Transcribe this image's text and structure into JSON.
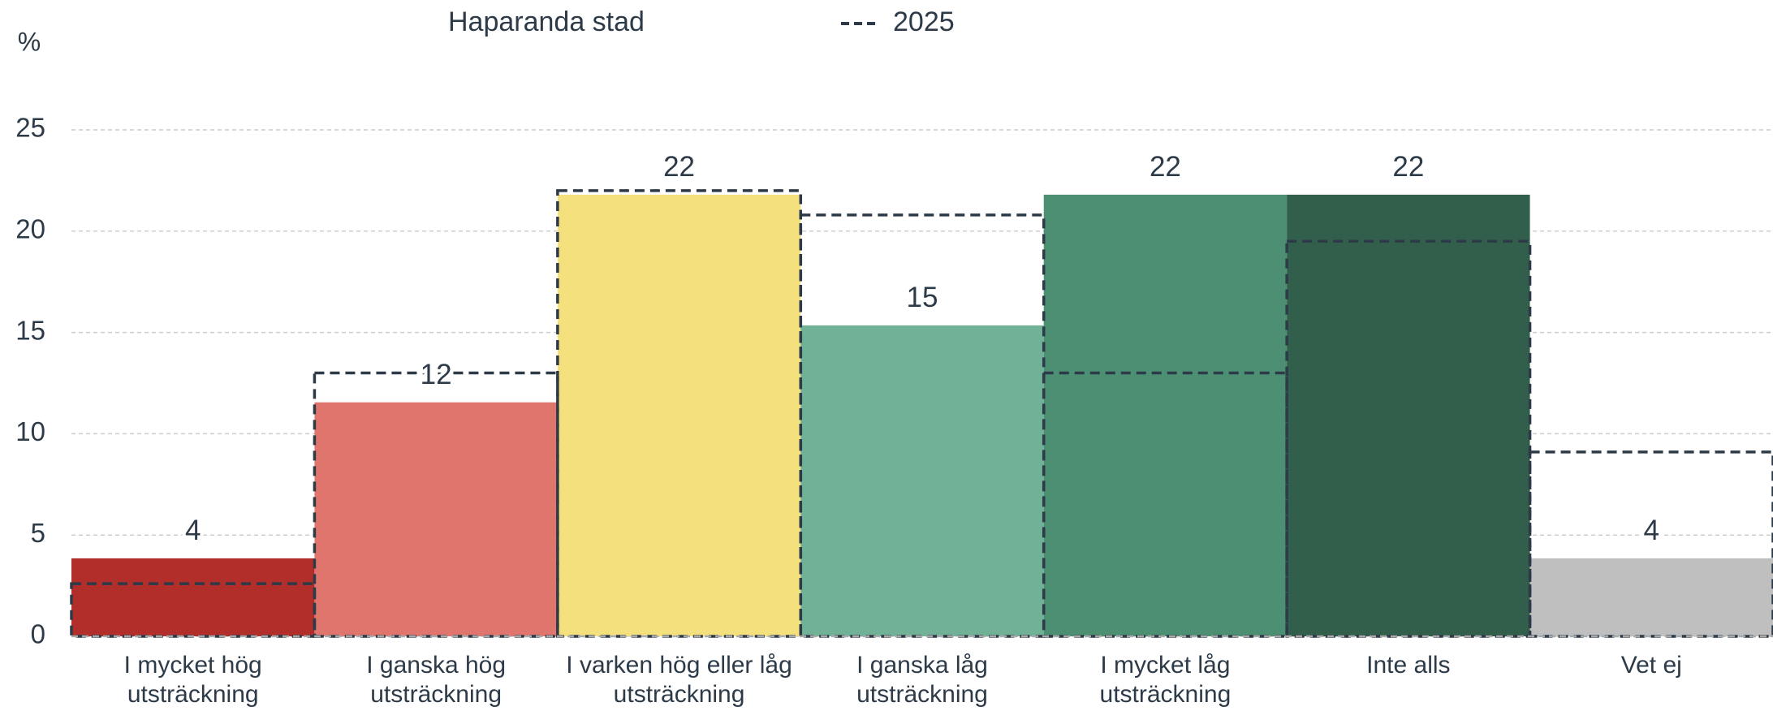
{
  "chart_data": {
    "type": "bar",
    "y_label": "%",
    "categories": [
      "I mycket hög utsträckning",
      "I ganska hög utsträckning",
      "I varken hög eller låg utsträckning",
      "I ganska låg utsträckning",
      "I mycket låg utsträckning",
      "Inte alls",
      "Vet ej"
    ],
    "series": [
      {
        "name": "Haparanda stad",
        "colors": [
          "#b22e2a",
          "#e0756d",
          "#f5e07e",
          "#70b197",
          "#4c8f72",
          "#325f4b",
          "#bfbfbf"
        ],
        "values": [
          3.85,
          11.55,
          21.8,
          15.35,
          21.8,
          21.8,
          3.85
        ],
        "value_labels": [
          "4",
          "12",
          "22",
          "15",
          "22",
          "22",
          "4"
        ]
      },
      {
        "name": "2025",
        "color": "#2d3a48",
        "style": "dashed",
        "values": [
          2.6,
          13.0,
          22.0,
          20.8,
          13.0,
          19.5,
          9.1
        ]
      }
    ],
    "ylim": [
      0,
      25
    ],
    "yticks": [
      0,
      5,
      10,
      15,
      20,
      25
    ],
    "grid": true
  }
}
